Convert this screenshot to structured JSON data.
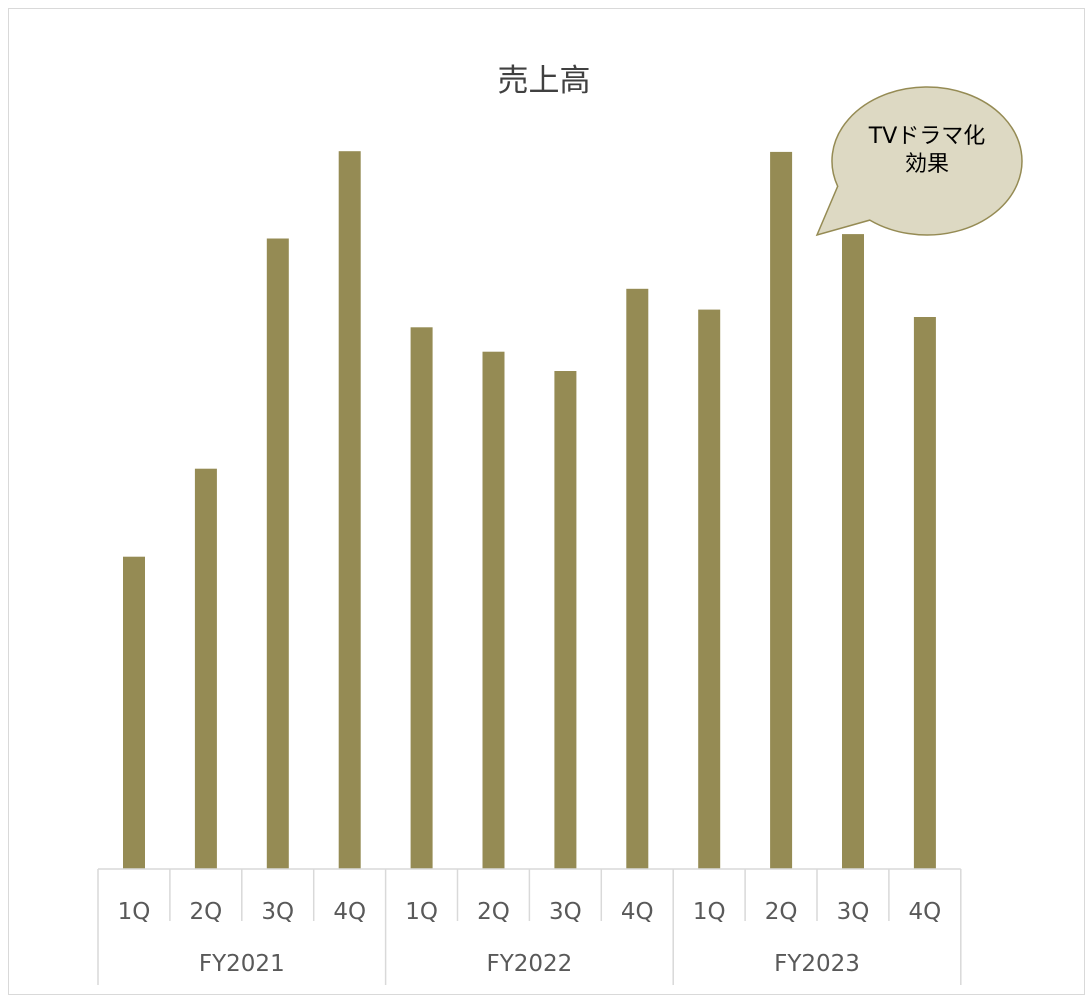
{
  "chart_data": {
    "type": "bar",
    "title": "売上高",
    "xlabel": "",
    "ylabel": "",
    "ylim": [
      0,
      100
    ],
    "grid": false,
    "legend": "none",
    "bar_color": "#958b54",
    "axis_color": "#d9d9d9",
    "categories": [
      "1Q",
      "2Q",
      "3Q",
      "4Q",
      "1Q",
      "2Q",
      "3Q",
      "4Q",
      "1Q",
      "2Q",
      "3Q",
      "4Q"
    ],
    "groups": [
      {
        "label": "FY2021",
        "count": 4
      },
      {
        "label": "FY2022",
        "count": 4
      },
      {
        "label": "FY2023",
        "count": 4
      }
    ],
    "values": [
      42.2,
      54.1,
      85.2,
      97.0,
      73.2,
      69.9,
      67.3,
      78.4,
      75.6,
      96.9,
      85.8,
      74.6
    ],
    "annotation": {
      "lines": [
        "TVドラマ化",
        "効果"
      ],
      "target_index": 9,
      "fill": "#ddd9c3",
      "stroke": "#958b54"
    }
  }
}
